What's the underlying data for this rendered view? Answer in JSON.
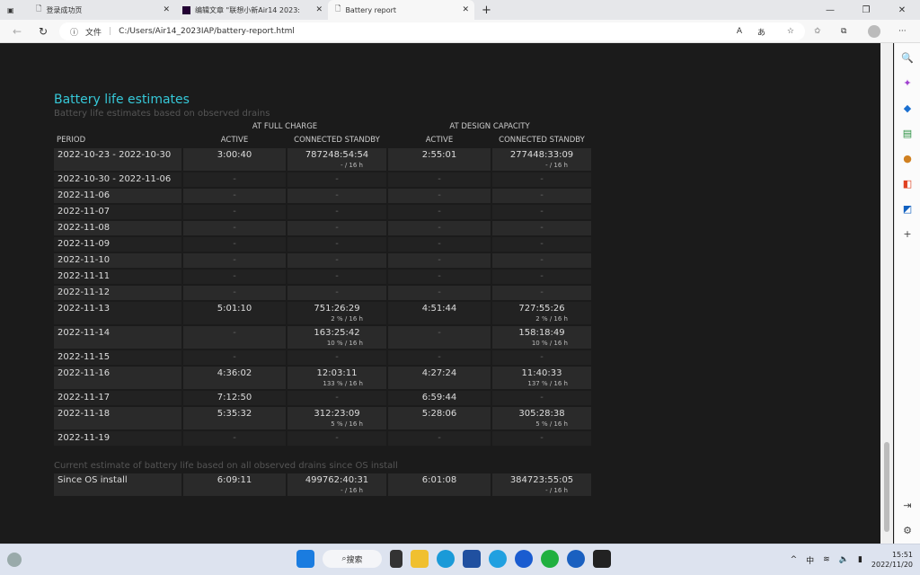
{
  "browser": {
    "tabs": [
      {
        "title": "登录成功页",
        "active": false
      },
      {
        "title": "编辑文章 \"联想小新Air14 2023:",
        "active": false
      },
      {
        "title": "Battery report",
        "active": true
      }
    ],
    "address": {
      "label": "文件",
      "url": "C:/Users/Air14_2023IAP/battery-report.html"
    }
  },
  "report": {
    "title": "Battery life estimates",
    "subtitle": "Battery life estimates based on observed drains",
    "group_headers": [
      "AT FULL CHARGE",
      "AT DESIGN CAPACITY"
    ],
    "columns": [
      "PERIOD",
      "ACTIVE",
      "CONNECTED STANDBY",
      "ACTIVE",
      "CONNECTED STANDBY"
    ],
    "rows": [
      {
        "period": "2022-10-23 - 2022-10-30",
        "fc_active": "3:00:40",
        "fc_cs": "787248:54:54",
        "fc_cs_sub": "- / 16 h",
        "dc_active": "2:55:01",
        "dc_cs": "277448:33:09",
        "dc_cs_sub": "- / 16 h"
      },
      {
        "period": "2022-10-30 - 2022-11-06",
        "fc_active": "-",
        "fc_cs": "-",
        "dc_active": "-",
        "dc_cs": "-"
      },
      {
        "period": "2022-11-06",
        "fc_active": "-",
        "fc_cs": "-",
        "dc_active": "-",
        "dc_cs": "-"
      },
      {
        "period": "2022-11-07",
        "fc_active": "-",
        "fc_cs": "-",
        "dc_active": "-",
        "dc_cs": "-"
      },
      {
        "period": "2022-11-08",
        "fc_active": "-",
        "fc_cs": "-",
        "dc_active": "-",
        "dc_cs": "-"
      },
      {
        "period": "2022-11-09",
        "fc_active": "-",
        "fc_cs": "-",
        "dc_active": "-",
        "dc_cs": "-"
      },
      {
        "period": "2022-11-10",
        "fc_active": "-",
        "fc_cs": "-",
        "dc_active": "-",
        "dc_cs": "-"
      },
      {
        "period": "2022-11-11",
        "fc_active": "-",
        "fc_cs": "-",
        "dc_active": "-",
        "dc_cs": "-"
      },
      {
        "period": "2022-11-12",
        "fc_active": "-",
        "fc_cs": "-",
        "dc_active": "-",
        "dc_cs": "-"
      },
      {
        "period": "2022-11-13",
        "fc_active": "5:01:10",
        "fc_cs": "751:26:29",
        "fc_cs_sub": "2 % / 16 h",
        "dc_active": "4:51:44",
        "dc_cs": "727:55:26",
        "dc_cs_sub": "2 % / 16 h"
      },
      {
        "period": "2022-11-14",
        "fc_active": "-",
        "fc_cs": "163:25:42",
        "fc_cs_sub": "10 % / 16 h",
        "dc_active": "-",
        "dc_cs": "158:18:49",
        "dc_cs_sub": "10 % / 16 h"
      },
      {
        "period": "2022-11-15",
        "fc_active": "-",
        "fc_cs": "-",
        "dc_active": "-",
        "dc_cs": "-"
      },
      {
        "period": "2022-11-16",
        "fc_active": "4:36:02",
        "fc_cs": "12:03:11",
        "fc_cs_sub": "133 % / 16 h",
        "dc_active": "4:27:24",
        "dc_cs": "11:40:33",
        "dc_cs_sub": "137 % / 16 h"
      },
      {
        "period": "2022-11-17",
        "fc_active": "7:12:50",
        "fc_cs": "-",
        "dc_active": "6:59:44",
        "dc_cs": "-"
      },
      {
        "period": "2022-11-18",
        "fc_active": "5:35:32",
        "fc_cs": "312:23:09",
        "fc_cs_sub": "5 % / 16 h",
        "dc_active": "5:28:06",
        "dc_cs": "305:28:38",
        "dc_cs_sub": "5 % / 16 h"
      },
      {
        "period": "2022-11-19",
        "fc_active": "-",
        "fc_cs": "-",
        "dc_active": "-",
        "dc_cs": "-"
      }
    ],
    "current_label": "Current estimate of battery life based on all observed drains since OS install",
    "since_install": {
      "period": "Since OS install",
      "fc_active": "6:09:11",
      "fc_cs": "499762:40:31",
      "fc_cs_sub": "- / 16 h",
      "dc_active": "6:01:08",
      "dc_cs": "384723:55:05",
      "dc_cs_sub": "- / 16 h"
    }
  },
  "taskbar": {
    "search": "搜索",
    "ime": "中",
    "time": "15:51",
    "date": "2022/11/20"
  },
  "colors": {
    "accent": "#36c8d8",
    "page_bg": "#1b1b1b"
  }
}
